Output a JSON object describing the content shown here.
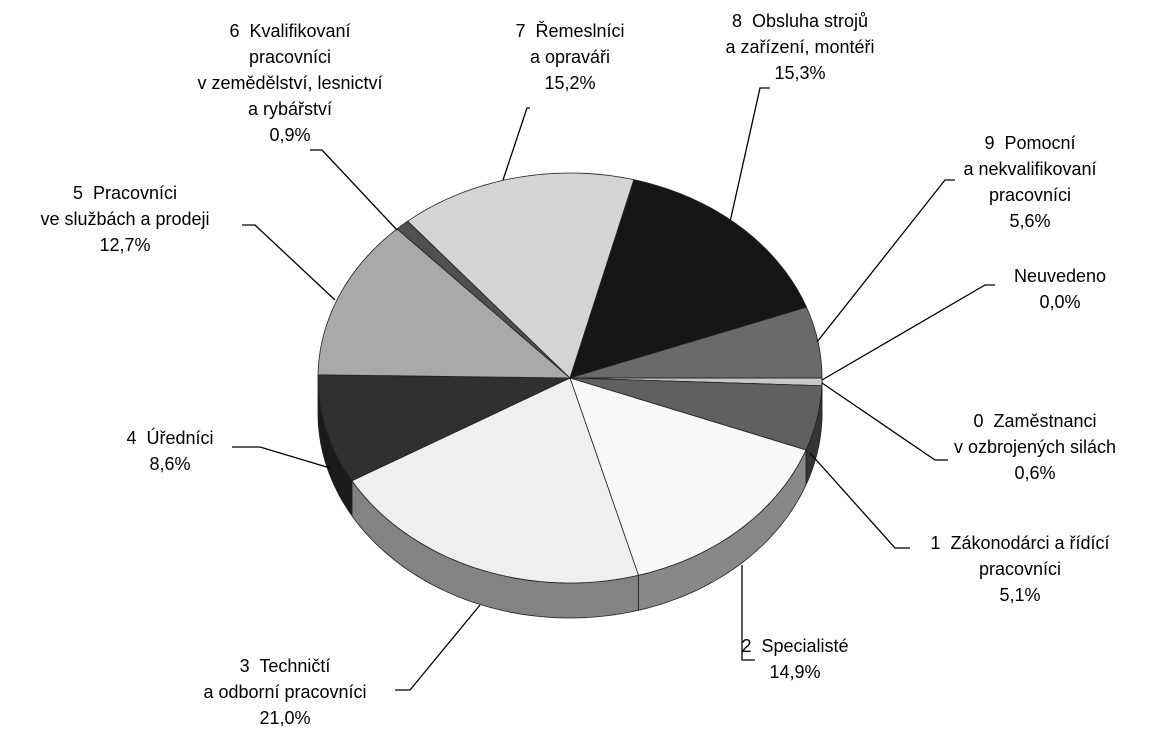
{
  "chart_data": {
    "type": "pie",
    "categories": [
      "0  Zaměstnanci\nv ozbrojených silách",
      "1  Zákonodárci a řídící\npracovníci",
      "2  Specialisté",
      "3  Techničtí\na odborní pracovníci",
      "4  Úředníci",
      "5  Pracovníci\nve službách a prodeji",
      "6  Kvalifikovaní\npracovníci\nv zemědělství, lesnictví\na rybářství",
      "7  Řemeslníci\na opraváři",
      "8  Obsluha strojů\na zařízení, montéři",
      "9  Pomocní\na nekvalifikovaní\npracovníci",
      "Neuvedeno"
    ],
    "values": [
      0.6,
      5.1,
      14.9,
      21.0,
      8.6,
      12.7,
      0.9,
      15.2,
      15.3,
      5.6,
      0.0
    ],
    "value_labels": [
      "0,6%",
      "5,1%",
      "14,9%",
      "21,0%",
      "8,6%",
      "12,7%",
      "0,9%",
      "15,2%",
      "15,3%",
      "5,6%",
      "0,0%"
    ],
    "colors": [
      "#c8c8c8",
      "#606060",
      "#f8f8f8",
      "#efefef",
      "#303030",
      "#a9a9a9",
      "#505050",
      "#d4d4d4",
      "#161616",
      "#6a6a6a",
      "#ffffff"
    ]
  }
}
